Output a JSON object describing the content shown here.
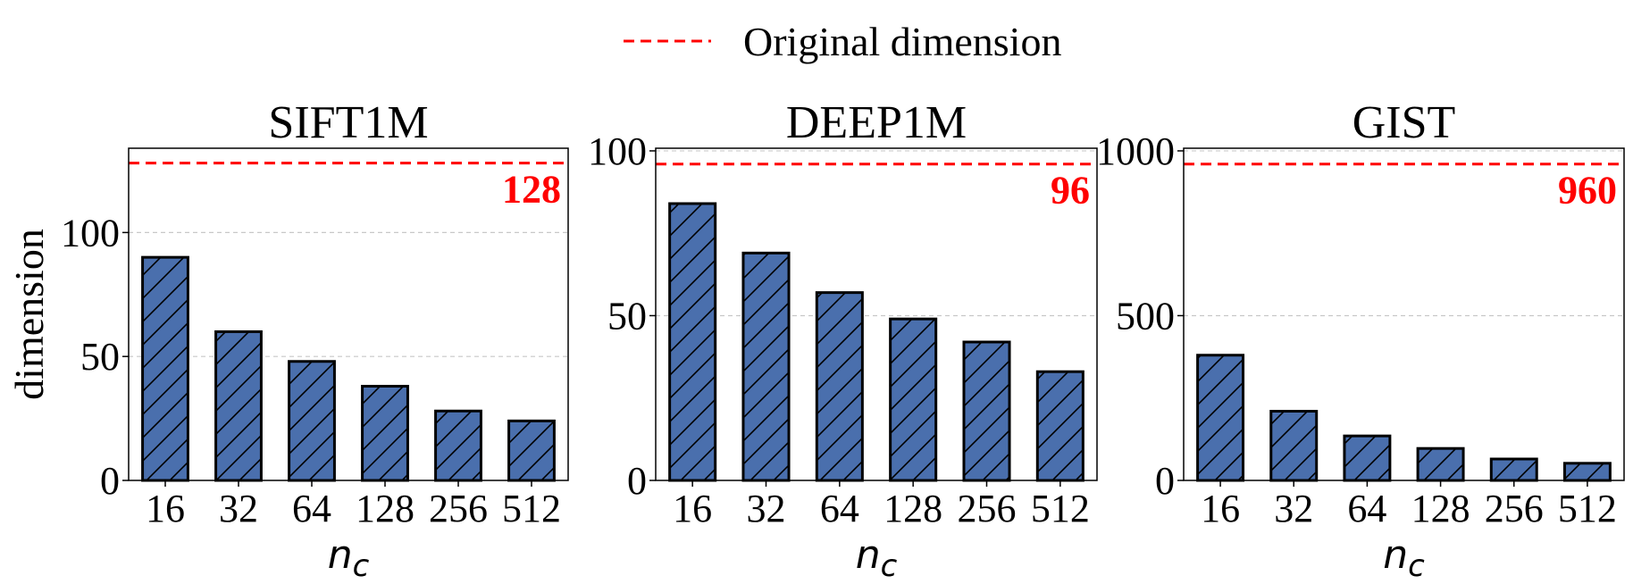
{
  "legend": {
    "label": "Original dimension",
    "color": "#ff0000",
    "placement": "top-center"
  },
  "bar_color": "#4a6fad",
  "bar_hatch": "diagonal",
  "chart_data": [
    {
      "type": "bar",
      "title": "SIFT1M",
      "ylabel": "dimension",
      "xlabel": "n_c",
      "xlabel_display": {
        "base": "n",
        "sub": "c"
      },
      "categories": [
        "16",
        "32",
        "64",
        "128",
        "256",
        "512"
      ],
      "values": [
        90,
        60,
        48,
        38,
        28,
        24
      ],
      "ylim": [
        0,
        134
      ],
      "yticks": [
        0,
        50,
        100
      ],
      "grid": true,
      "reference": {
        "value": 128,
        "label": "128"
      }
    },
    {
      "type": "bar",
      "title": "DEEP1M",
      "ylabel": "",
      "xlabel": "n_c",
      "xlabel_display": {
        "base": "n",
        "sub": "c"
      },
      "categories": [
        "16",
        "32",
        "64",
        "128",
        "256",
        "512"
      ],
      "values": [
        84,
        69,
        57,
        49,
        42,
        33
      ],
      "ylim": [
        0,
        100.8
      ],
      "yticks": [
        0,
        50,
        100
      ],
      "grid": true,
      "reference": {
        "value": 96,
        "label": "96"
      }
    },
    {
      "type": "bar",
      "title": "GIST",
      "ylabel": "",
      "xlabel": "n_c",
      "xlabel_display": {
        "base": "n",
        "sub": "c"
      },
      "categories": [
        "16",
        "32",
        "64",
        "128",
        "256",
        "512"
      ],
      "values": [
        380,
        210,
        135,
        97,
        65,
        52
      ],
      "ylim": [
        0,
        1008
      ],
      "yticks": [
        0,
        500,
        1000
      ],
      "grid": true,
      "reference": {
        "value": 960,
        "label": "960"
      }
    }
  ]
}
